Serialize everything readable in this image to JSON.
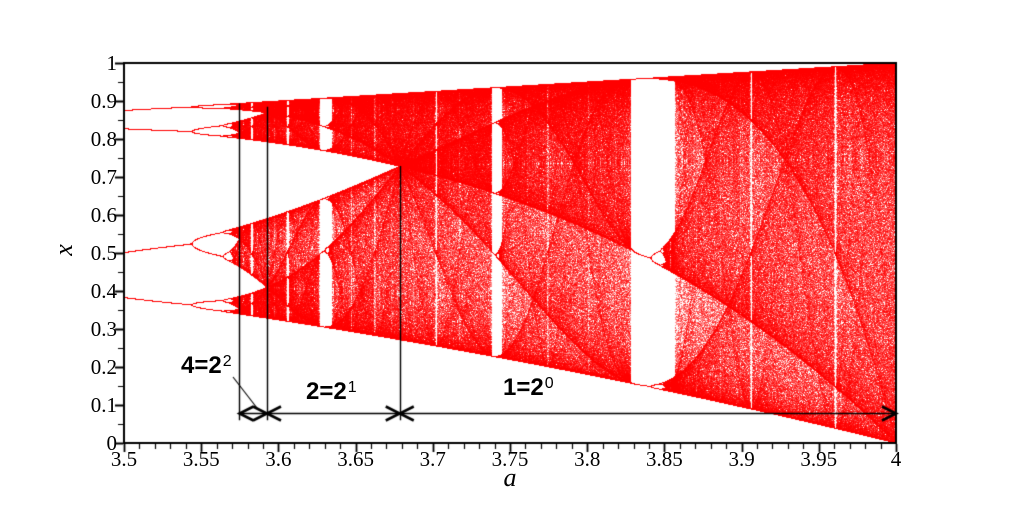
{
  "chart_data": {
    "type": "scatter",
    "subtype": "bifurcation_diagram",
    "generator": "logistic map x[n+1] = a*x[n]*(1-x[n]); for each a the attractor values of x are plotted",
    "title": "",
    "xlabel": "a",
    "ylabel": "x",
    "xlim": [
      3.5,
      4.0
    ],
    "ylim": [
      0.0,
      1.0
    ],
    "x_tick_values": [
      3.5,
      3.55,
      3.6,
      3.65,
      3.7,
      3.75,
      3.8,
      3.85,
      3.9,
      3.95,
      4.0
    ],
    "x_tick_labels": [
      "3.5",
      "3.55",
      "3.6",
      "3.65",
      "3.7",
      "3.75",
      "3.8",
      "3.85",
      "3.9",
      "3.95",
      "4"
    ],
    "y_tick_values": [
      0,
      0.1,
      0.2,
      0.3,
      0.4,
      0.5,
      0.6,
      0.7,
      0.8,
      0.9,
      1
    ],
    "y_tick_labels": [
      "0",
      "0.1",
      "0.2",
      "0.3",
      "0.4",
      "0.5",
      "0.6",
      "0.7",
      "0.8",
      "0.9",
      "1"
    ],
    "x_minor_tick_step": 0.01,
    "y_minor_tick_step": 0.05,
    "grid": false,
    "legend": false,
    "point_color": "#ff0000",
    "axis_color": "#000000",
    "annotation_color": "#000000",
    "interval_arrow_y": 0.08,
    "band_merge_lines": [
      {
        "a": 3.5748,
        "x_top": 0.894,
        "x_bottom": 0.06
      },
      {
        "a": 3.5926,
        "x_top": 0.885,
        "x_bottom": 0.06
      },
      {
        "a": 3.6786,
        "x_top": 0.729,
        "x_bottom": 0.06
      }
    ],
    "annotations": [
      {
        "text": "4=2",
        "sup": "2",
        "a_from": 3.5748,
        "a_to": 3.5926
      },
      {
        "text": "2=2",
        "sup": "1",
        "a_from": 3.5926,
        "a_to": 3.6786
      },
      {
        "text": "1=2",
        "sup": "0",
        "a_from": 3.6786,
        "a_to": 4.0
      }
    ]
  }
}
